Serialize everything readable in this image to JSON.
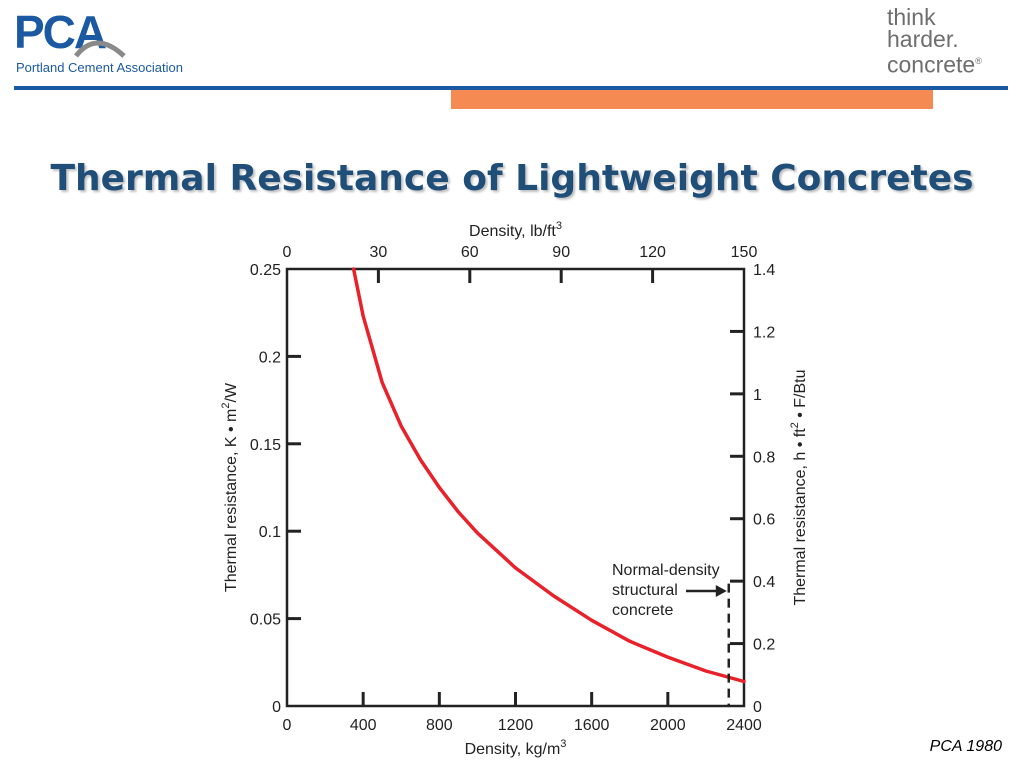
{
  "header": {
    "logo_left": {
      "mark": "PCA",
      "subtitle": "Portland Cement Association"
    },
    "logo_right": {
      "line1": "think",
      "line2": "harder.",
      "line3": "concrete",
      "trademark": "®"
    },
    "accent_colors": {
      "blue": "#1b5aa2",
      "orange": "#f58b53"
    }
  },
  "slide": {
    "title": "Thermal Resistance of Lightweight Concretes",
    "source_note": "PCA 1980"
  },
  "chart_data": {
    "type": "line",
    "title": "",
    "xlabel_bottom": "Density, kg/m",
    "xlabel_bottom_sup": "3",
    "xlabel_top": "Density, lb/ft",
    "xlabel_top_sup": "3",
    "ylabel_left_parts": [
      "Thermal resistance, K • m",
      "2",
      "/W"
    ],
    "ylabel_right_parts": [
      "Thermal resistance, h • ft",
      "2",
      " • F/Btu"
    ],
    "xlim_bottom": [
      0,
      2400
    ],
    "xlim_top": [
      0,
      150
    ],
    "ylim_left": [
      0,
      0.25
    ],
    "ylim_right": [
      0,
      1.4
    ],
    "x_ticks_bottom": [
      "0",
      "400",
      "800",
      "1200",
      "1600",
      "2000",
      "2400"
    ],
    "x_ticks_top": [
      "0",
      "30",
      "60",
      "90",
      "120",
      "150"
    ],
    "y_ticks_left": [
      "0",
      "0.05",
      "0.1",
      "0.15",
      "0.2",
      "0.25"
    ],
    "y_ticks_right": [
      "0",
      "0.2",
      "0.4",
      "0.6",
      "0.8",
      "1",
      "1.2",
      "1.4"
    ],
    "grid": false,
    "series": [
      {
        "color": "#e8212b",
        "x": [
          350,
          400,
          500,
          600,
          700,
          800,
          900,
          1000,
          1200,
          1400,
          1600,
          1800,
          2000,
          2200,
          2400
        ],
        "y": [
          0.25,
          0.223,
          0.185,
          0.16,
          0.141,
          0.125,
          0.111,
          0.099,
          0.079,
          0.063,
          0.049,
          0.037,
          0.028,
          0.02,
          0.014
        ]
      }
    ],
    "annotation": {
      "lines": [
        "Normal-density",
        "structural",
        "concrete"
      ],
      "x": 2320,
      "y_top": 0.07
    }
  }
}
